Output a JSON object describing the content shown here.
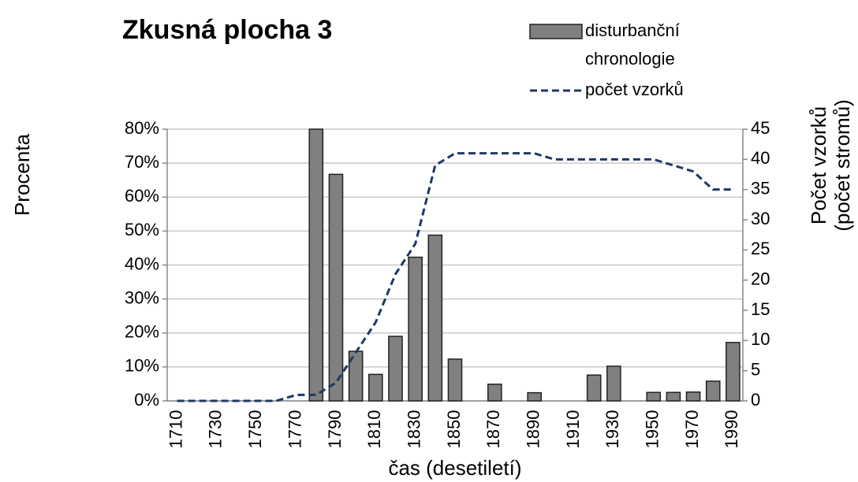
{
  "chart_data": {
    "type": "bar-line",
    "title": "Zkusná plocha 3",
    "ylabel": "Procenta",
    "y2label": [
      "Počet vzorků",
      "(počet stromů)"
    ],
    "xlabel": "čas (desetiletí)",
    "categories": [
      "1710",
      null,
      "1730",
      null,
      "1750",
      null,
      "1770",
      null,
      "1790",
      null,
      "1810",
      null,
      "1830",
      null,
      "1850",
      null,
      "1870",
      null,
      "1890",
      null,
      "1910",
      null,
      "1930",
      null,
      "1950",
      null,
      "1970",
      null,
      "1990"
    ],
    "series": [
      {
        "name": "disturbanční chronologie",
        "color": "#808080",
        "type": "bar",
        "values": [
          0,
          0,
          0,
          0,
          0,
          0,
          0,
          80,
          66.7,
          14.6,
          7.8,
          19,
          42.3,
          48.8,
          12.3,
          0,
          4.9,
          0,
          2.4,
          0,
          0,
          7.6,
          10.2,
          0,
          2.5,
          2.5,
          2.6,
          5.8,
          17.2
        ]
      },
      {
        "name": "počet vzorků",
        "color": "#1f3864",
        "type": "line",
        "axis": "y2",
        "values": [
          0,
          0,
          0,
          0,
          0,
          0,
          1,
          1,
          3,
          8,
          13,
          21,
          26,
          39,
          41,
          41,
          41,
          41,
          41,
          40,
          40,
          40,
          40,
          40,
          40,
          39,
          38,
          35,
          35
        ]
      }
    ],
    "ylim": [
      0,
      80
    ],
    "yticks": [
      {
        "value": 0,
        "label": "0%"
      },
      {
        "value": 10,
        "label": "10%"
      },
      {
        "value": 20,
        "label": "20%"
      },
      {
        "value": 30,
        "label": "30%"
      },
      {
        "value": 40,
        "label": "40%"
      },
      {
        "value": 50,
        "label": "50%"
      },
      {
        "value": 60,
        "label": "60%"
      },
      {
        "value": 70,
        "label": "70%"
      },
      {
        "value": 80,
        "label": "80%"
      }
    ],
    "y2lim": [
      0,
      45
    ],
    "y2ticks": [
      0,
      5,
      10,
      15,
      20,
      25,
      30,
      35,
      40,
      45
    ],
    "grid": true,
    "legend": "top-right"
  }
}
